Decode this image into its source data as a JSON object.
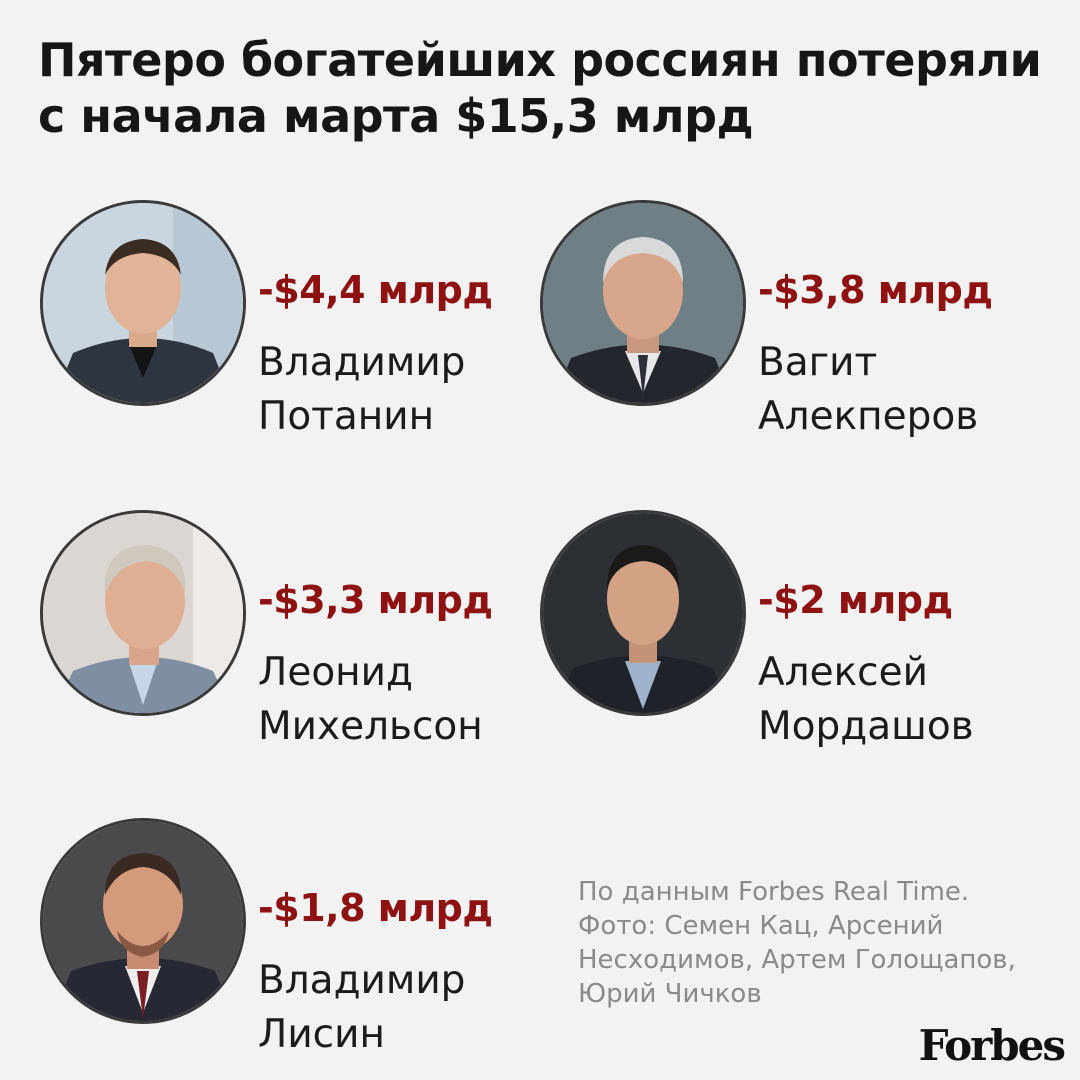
{
  "title": {
    "line1": "Пятеро богатейших россиян потеряли",
    "line2": "с начала марта $15,3 млрд"
  },
  "people": [
    {
      "loss": "-$4,4 млрд",
      "first_name": "Владимир",
      "last_name": "Потанин"
    },
    {
      "loss": "-$3,8 млрд",
      "first_name": "Вагит",
      "last_name": "Алекперов"
    },
    {
      "loss": "-$3,3 млрд",
      "first_name": "Леонид",
      "last_name": "Михельсон"
    },
    {
      "loss": "-$2 млрд",
      "first_name": "Алексей",
      "last_name": "Мордашов"
    },
    {
      "loss": "-$1,8 млрд",
      "first_name": "Владимир",
      "last_name": "Лисин"
    }
  ],
  "source": {
    "line1": "По данным Forbes Real Time.",
    "line2": "Фото: Семен Кац, Арсений",
    "line3": "Несходимов, Артем Голощапов,",
    "line4": "Юрий Чичков"
  },
  "brand": {
    "logo": "Forbes"
  },
  "colors": {
    "loss": "#8e1212",
    "background": "#f2f2f2",
    "text": "#1b1b1b",
    "source": "#8a8a8a"
  }
}
